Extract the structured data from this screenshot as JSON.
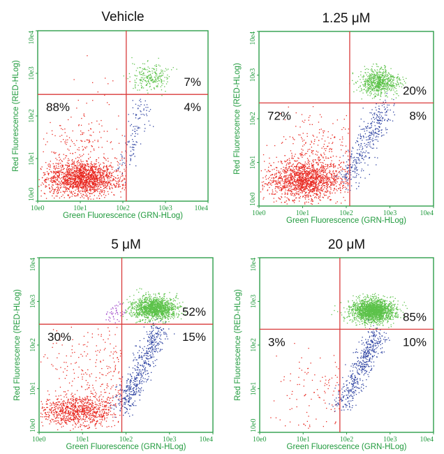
{
  "figure": {
    "colors": {
      "frame": "#2e9e4a",
      "gate": "#d93a3a",
      "axis_text": "#1f9a3c",
      "dot_red": "#e8261e",
      "dot_green": "#5cc24a",
      "dot_blue": "#2a3fa0",
      "dot_purple": "#9b3fc7"
    }
  },
  "chart_data": [
    {
      "type": "scatter",
      "title": "Vehicle",
      "xlabel": "Green Fluorescence (GRN-HLog)",
      "ylabel": "Red Fluorescence (RED-HLog)",
      "x_scale": "log",
      "y_scale": "log",
      "xlim": [
        1,
        10000
      ],
      "ylim": [
        1,
        10000
      ],
      "x_ticks": [
        "10e0",
        "10e1",
        "10e2",
        "10e3",
        "10e4"
      ],
      "y_ticks": [
        "10e0",
        "10e1",
        "10e2",
        "10e3",
        "10e4"
      ],
      "gate": {
        "x": 120,
        "y": 320
      },
      "quadrants": {
        "upper_left": "",
        "upper_right": "7%",
        "lower_left": "88%",
        "lower_right": "4%"
      }
    },
    {
      "type": "scatter",
      "title": "1.25 μM",
      "xlabel": "Green Fluorescence (GRN-HLog)",
      "ylabel": "Red Fluorescence (RED-HLog)",
      "x_scale": "log",
      "y_scale": "log",
      "xlim": [
        1,
        10000
      ],
      "ylim": [
        1,
        10000
      ],
      "x_ticks": [
        "10e0",
        "10e1",
        "10e2",
        "10e3",
        "10e4"
      ],
      "y_ticks": [
        "10e0",
        "10e1",
        "10e2",
        "10e3",
        "10e4"
      ],
      "gate": {
        "x": 120,
        "y": 230
      },
      "quadrants": {
        "upper_left": "",
        "upper_right": "20%",
        "lower_left": "72%",
        "lower_right": "8%"
      }
    },
    {
      "type": "scatter",
      "title": "5 μM",
      "xlabel": "Green Fluorescence (GRN-HLog)",
      "ylabel": "Red Fluorescence (RED-HLog)",
      "x_scale": "log",
      "y_scale": "log",
      "xlim": [
        1,
        10000
      ],
      "ylim": [
        1,
        10000
      ],
      "x_ticks": [
        "10e0",
        "10e1",
        "10e2",
        "10e3",
        "10e4"
      ],
      "y_ticks": [
        "10e0",
        "10e1",
        "10e2",
        "10e3",
        "10e4"
      ],
      "gate": {
        "x": 80,
        "y": 300
      },
      "quadrants": {
        "upper_left": "",
        "upper_right": "52%",
        "lower_left": "30%",
        "lower_right": "15%"
      }
    },
    {
      "type": "scatter",
      "title": "20 μM",
      "xlabel": "Green Fluorescence (GRN-HLog)",
      "ylabel": "Red Fluorescence (RED-HLog)",
      "x_scale": "log",
      "y_scale": "log",
      "xlim": [
        1,
        10000
      ],
      "ylim": [
        1,
        10000
      ],
      "x_ticks": [
        "10e0",
        "10e1",
        "10e2",
        "10e3",
        "10e4"
      ],
      "y_ticks": [
        "10e0",
        "10e1",
        "10e2",
        "10e3",
        "10e4"
      ],
      "gate": {
        "x": 70,
        "y": 230
      },
      "quadrants": {
        "upper_left": "",
        "upper_right": "85%",
        "lower_left": "3%",
        "lower_right": "10%"
      }
    }
  ]
}
